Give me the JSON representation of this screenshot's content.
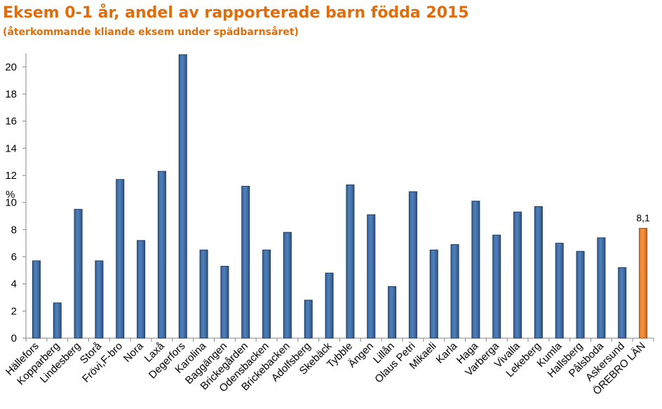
{
  "chart_data": {
    "type": "bar",
    "title": "Eksem 0-1 år, andel av rapporterade barn födda 2015",
    "subtitle": "(återkommande kliande eksem under spädbarnsåret)",
    "ylabel": "%",
    "xlabel": "",
    "ylim": [
      0,
      21
    ],
    "yticks": [
      0,
      2,
      4,
      6,
      8,
      10,
      12,
      14,
      16,
      18,
      20
    ],
    "grid": false,
    "legend": "none",
    "categories": [
      "Hällefors",
      "Kopparberg",
      "Lindesberg",
      "Storå",
      "Frövi,F-bro",
      "Nora",
      "Laxå",
      "Degerfors",
      "Karolina",
      "Baggängen",
      "Brickegården",
      "Odensbacken",
      "Brickebacken",
      "Adolfsberg",
      "Skebäck",
      "Tybble",
      "Ängen",
      "Lillån",
      "Olaus Petri",
      "Mikaeli",
      "Karla",
      "Haga",
      "Varberga",
      "Vivalla",
      "Lekeberg",
      "Kumla",
      "Hallsberg",
      "Pålsboda",
      "Askersund",
      "ÖREBRO LÄN"
    ],
    "series": [
      {
        "values": [
          5.7,
          2.6,
          9.5,
          5.7,
          11.7,
          7.2,
          12.3,
          20.9,
          6.5,
          5.3,
          11.2,
          6.5,
          7.8,
          2.8,
          4.8,
          11.3,
          9.1,
          3.8,
          10.8,
          6.5,
          6.9,
          10.1,
          7.6,
          9.3,
          9.7,
          7.0,
          6.4,
          7.4,
          5.2,
          8.1
        ]
      }
    ],
    "data_labels": [
      {
        "category": "ÖREBRO LÄN",
        "text": "8,1"
      }
    ],
    "colors": {
      "bar": "#4F81BD",
      "bar_edge": "#1F3A5F",
      "highlight": "#F79646",
      "highlight_edge": "#9A4E0E",
      "title": "#E36C09"
    },
    "highlight_category": "ÖREBRO LÄN"
  }
}
